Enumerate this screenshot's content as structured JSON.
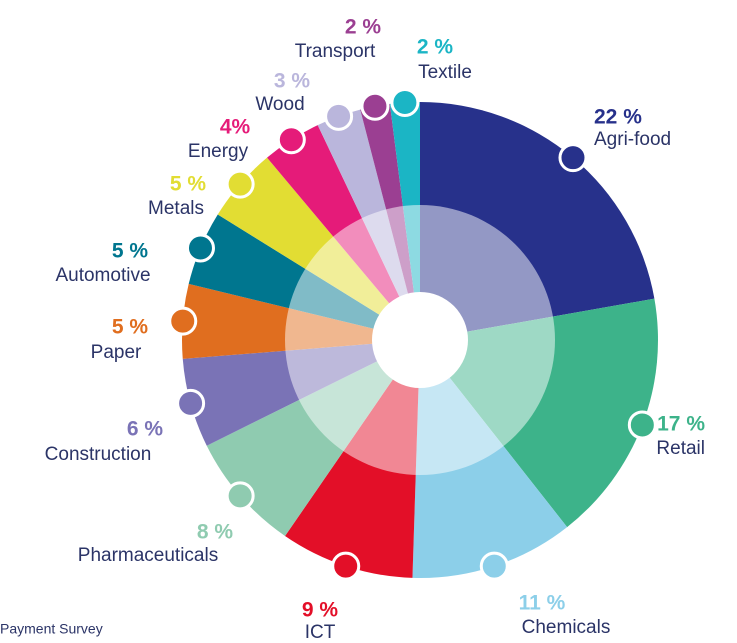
{
  "chart_data": {
    "type": "pie",
    "categories": [
      "Agri-food",
      "Retail",
      "Chemicals",
      "ICT",
      "Pharmaceuticals",
      "Construction",
      "Paper",
      "Automotive",
      "Metals",
      "Energy",
      "Wood",
      "Transport",
      "Textile"
    ],
    "values": [
      22,
      17,
      11,
      9,
      8,
      6,
      5,
      5,
      5,
      4,
      3,
      2,
      2
    ],
    "value_labels": [
      "22 %",
      "17 %",
      "11 %",
      "9 %",
      "8 %",
      "6 %",
      "5 %",
      "5 %",
      "5 %",
      "4%",
      "3 %",
      "2 %",
      "2 %"
    ],
    "colors": [
      "#27318b",
      "#3db38a",
      "#8ccfe9",
      "#e30f28",
      "#8fcbb0",
      "#7a73b6",
      "#e06e1f",
      "#00768f",
      "#e2dd33",
      "#e51b79",
      "#bab6dc",
      "#9b3f92",
      "#1bb5c5"
    ],
    "source": "Payment Survey"
  }
}
